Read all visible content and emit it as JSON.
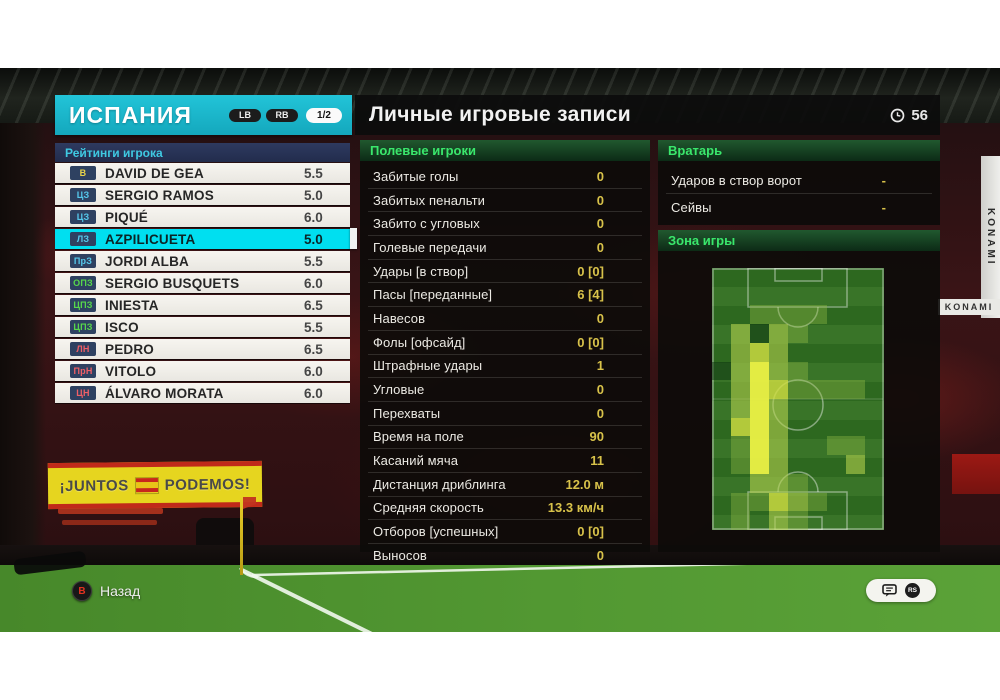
{
  "colors": {
    "accent_teal": "#18b7cc",
    "selected_row": "#00dff0",
    "section_green_text": "#3ae76c",
    "stat_value_yellow": "#d8c24a",
    "badge_bg": "#2e4161",
    "pos_gk": "#e8d44a",
    "pos_df": "#55c9ec",
    "pos_mf": "#57d84b",
    "pos_fw": "#f05f66"
  },
  "header": {
    "team_name": "ИСПАНИЯ",
    "nav_prev": "LB",
    "nav_next": "RB",
    "page_indicator": "1/2",
    "title": "Личные игровые записи",
    "clock_value": "56"
  },
  "player_list": {
    "header": "Рейтинги игрока",
    "players": [
      {
        "pos": "В",
        "group": "pos_gk",
        "name": "DAVID DE GEA",
        "rating": "5.5",
        "selected": false
      },
      {
        "pos": "ЦЗ",
        "group": "pos_df",
        "name": "SERGIO RAMOS",
        "rating": "5.0",
        "selected": false
      },
      {
        "pos": "ЦЗ",
        "group": "pos_df",
        "name": "PIQUÉ",
        "rating": "6.0",
        "selected": false
      },
      {
        "pos": "ЛЗ",
        "group": "pos_df",
        "name": "AZPILICUETA",
        "rating": "5.0",
        "selected": true
      },
      {
        "pos": "ПрЗ",
        "group": "pos_df",
        "name": "JORDI ALBA",
        "rating": "5.5",
        "selected": false
      },
      {
        "pos": "ОПЗ",
        "group": "pos_mf",
        "name": "SERGIO BUSQUETS",
        "rating": "6.0",
        "selected": false
      },
      {
        "pos": "ЦПЗ",
        "group": "pos_mf",
        "name": "INIESTA",
        "rating": "6.5",
        "selected": false
      },
      {
        "pos": "ЦПЗ",
        "group": "pos_mf",
        "name": "ISCO",
        "rating": "5.5",
        "selected": false
      },
      {
        "pos": "ЛН",
        "group": "pos_fw",
        "name": "PEDRO",
        "rating": "6.5",
        "selected": false
      },
      {
        "pos": "ПрН",
        "group": "pos_fw",
        "name": "VITOLO",
        "rating": "6.0",
        "selected": false
      },
      {
        "pos": "ЦН",
        "group": "pos_fw",
        "name": "ÁLVARO MORATA",
        "rating": "6.0",
        "selected": false
      }
    ]
  },
  "field_players": {
    "title": "Полевые игроки",
    "stats": [
      {
        "label": "Забитые голы",
        "value": "0"
      },
      {
        "label": "Забитых пенальти",
        "value": "0"
      },
      {
        "label": "Забито с угловых",
        "value": "0"
      },
      {
        "label": "Голевые передачи",
        "value": "0"
      },
      {
        "label": "Удары [в створ]",
        "value": "0 [0]"
      },
      {
        "label": "Пасы [переданные]",
        "value": "6 [4]"
      },
      {
        "label": "Навесов",
        "value": "0"
      },
      {
        "label": "Фолы [офсайд]",
        "value": "0 [0]"
      },
      {
        "label": "Штрафные удары",
        "value": "1"
      },
      {
        "label": "Угловые",
        "value": "0"
      },
      {
        "label": "Перехваты",
        "value": "0"
      },
      {
        "label": "Время на поле",
        "value": "90"
      },
      {
        "label": "Касаний мяча",
        "value": "11"
      },
      {
        "label": "Дистанция дриблинга",
        "value": "12.0 м"
      },
      {
        "label": "Средняя скорость",
        "value": "13.3 км/ч"
      },
      {
        "label": "Отборов [успешных]",
        "value": "0 [0]"
      },
      {
        "label": "Выносов",
        "value": "0"
      }
    ]
  },
  "goalkeeper": {
    "title": "Вратарь",
    "stats": [
      {
        "label": "Ударов в створ ворот",
        "value": "-"
      },
      {
        "label": "Сейвы",
        "value": "-"
      }
    ]
  },
  "play_zone": {
    "title": "Зона игры",
    "heatmap": {
      "palette": {
        "-1": "rgba(8,46,14,0.50)",
        "1": "rgba(150,190,70,0.38)",
        "2": "rgba(178,208,76,0.60)",
        "3": "rgba(208,222,66,0.82)",
        "4": "rgba(232,240,68,0.97)"
      },
      "grid": [
        [
          0,
          0,
          0,
          0,
          0,
          0,
          0,
          0,
          0
        ],
        [
          0,
          0,
          0,
          0,
          0,
          0,
          0,
          0,
          0
        ],
        [
          0,
          0,
          1,
          1,
          1,
          1,
          0,
          0,
          0
        ],
        [
          0,
          2,
          -1,
          2,
          1,
          0,
          0,
          0,
          0
        ],
        [
          0,
          2,
          3,
          2,
          0,
          0,
          0,
          0,
          0
        ],
        [
          -1,
          2,
          4,
          2,
          1,
          0,
          0,
          0,
          0
        ],
        [
          0,
          2,
          4,
          3,
          1,
          1,
          1,
          1,
          0
        ],
        [
          0,
          2,
          4,
          2,
          0,
          0,
          0,
          0,
          0
        ],
        [
          0,
          3,
          4,
          2,
          0,
          0,
          0,
          0,
          0
        ],
        [
          0,
          1,
          4,
          2,
          0,
          0,
          1,
          1,
          0
        ],
        [
          0,
          1,
          4,
          2,
          0,
          0,
          0,
          2,
          0
        ],
        [
          0,
          0,
          2,
          2,
          1,
          0,
          0,
          0,
          0
        ],
        [
          0,
          1,
          1,
          3,
          2,
          1,
          0,
          0,
          0
        ],
        [
          0,
          1,
          0,
          2,
          1,
          0,
          0,
          0,
          0
        ]
      ]
    }
  },
  "footer": {
    "back_button": "B",
    "back_label": "Назад",
    "right_stick_label": "RS"
  },
  "backdrop": {
    "banner_left": "¡JUNTOS",
    "banner_right": "PODEMOS!",
    "ad_board": "KONAMI"
  }
}
